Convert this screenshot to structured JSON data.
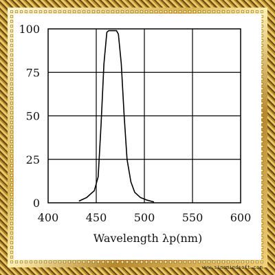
{
  "chart_data": {
    "type": "line",
    "xlabel": "Wavelength λp(nm)",
    "ylabel": "",
    "xlim": [
      400,
      600
    ],
    "ylim": [
      0,
      100
    ],
    "x_ticks": [
      400,
      450,
      500,
      550,
      600
    ],
    "y_ticks": [
      0,
      25,
      50,
      75,
      100
    ],
    "grid": true,
    "series": [
      {
        "x": [
          432,
          440,
          448,
          452,
          455,
          458,
          461,
          463,
          465,
          468,
          471,
          473,
          476,
          479,
          482,
          486,
          490,
          496,
          503,
          510
        ],
        "y": [
          1,
          3,
          7,
          15,
          45,
          80,
          98,
          99,
          99,
          99,
          99,
          97,
          80,
          50,
          25,
          12,
          6,
          3,
          1.5,
          0.5
        ]
      }
    ]
  },
  "watermark": "www.sinomindsoft.com"
}
